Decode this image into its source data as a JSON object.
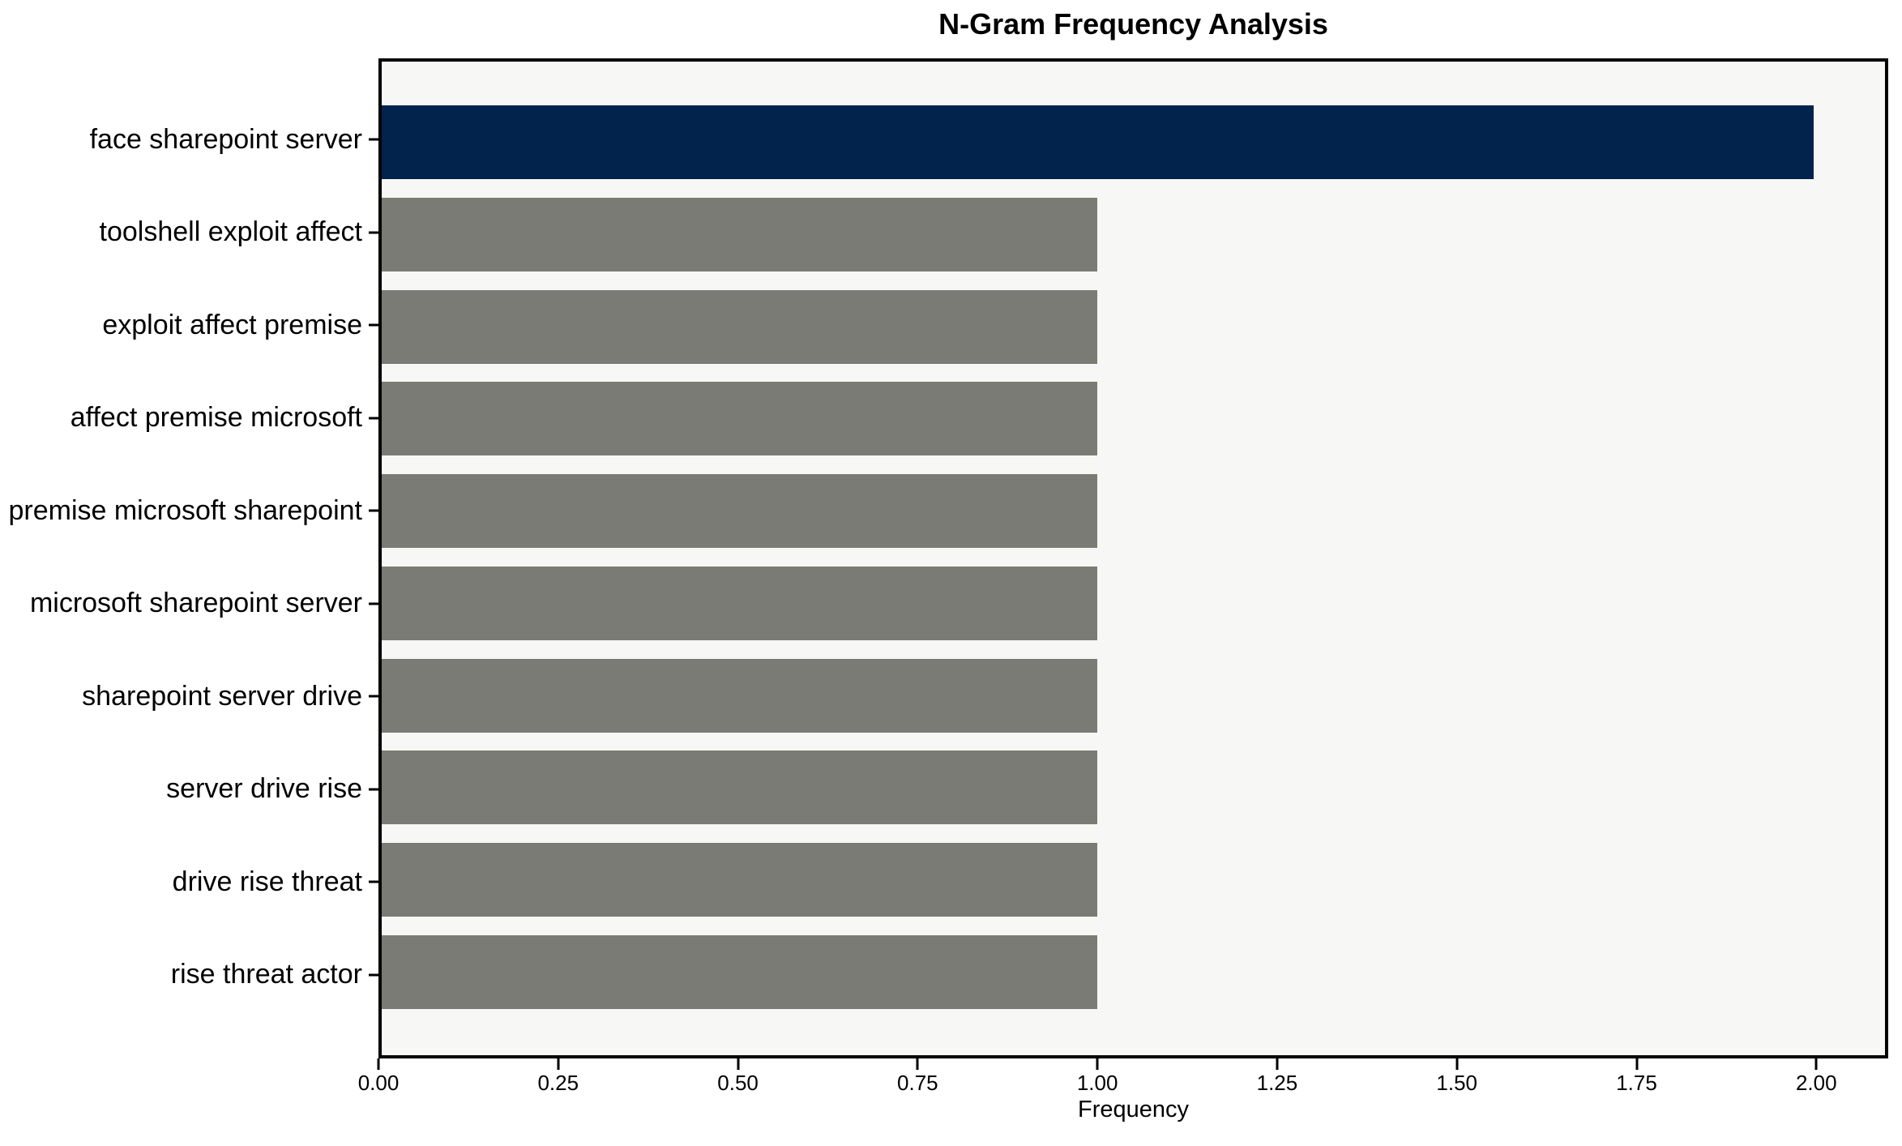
{
  "title": "N-Gram Frequency Analysis",
  "chart_data": {
    "type": "bar",
    "orientation": "horizontal",
    "title": "N-Gram Frequency Analysis",
    "xlabel": "Frequency",
    "ylabel": "",
    "categories": [
      "face sharepoint server",
      "toolshell exploit affect",
      "exploit affect premise",
      "affect premise microsoft",
      "premise microsoft sharepoint",
      "microsoft sharepoint server",
      "sharepoint server drive",
      "server drive rise",
      "drive rise threat",
      "rise threat actor"
    ],
    "values": [
      2,
      1,
      1,
      1,
      1,
      1,
      1,
      1,
      1,
      1
    ],
    "bar_colors": [
      "#02234c",
      "#7b7b76",
      "#7b7b76",
      "#7b7b76",
      "#7b7b76",
      "#7b7b76",
      "#7b7b76",
      "#7b7b76",
      "#7b7b76",
      "#7b7b76"
    ],
    "highlight_color": "#02234c",
    "default_color": "#7b7b76",
    "xlim": [
      0,
      2.1
    ],
    "x_ticks": [
      0,
      0.25,
      0.5,
      0.75,
      1.0,
      1.25,
      1.5,
      1.75,
      2.0
    ],
    "x_tick_labels": [
      "0.00",
      "0.25",
      "0.50",
      "0.75",
      "1.00",
      "1.25",
      "1.50",
      "1.75",
      "2.00"
    ],
    "bar_height_fraction": 0.8,
    "grid": false,
    "legend": "none",
    "plot_bg": "#f7f7f5",
    "figure_bg": "#ffffff",
    "spine_color": "#000000"
  }
}
